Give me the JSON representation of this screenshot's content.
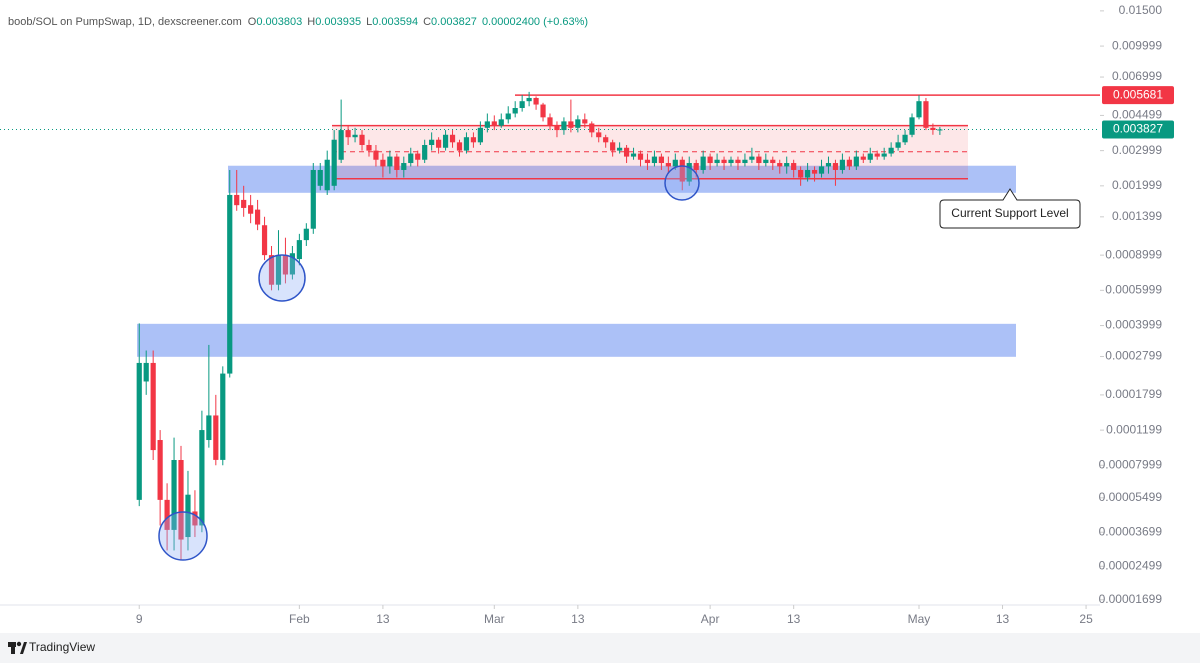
{
  "chart_data": {
    "type": "candlestick",
    "header": {
      "symbol": "boob/SOL on PumpSwap, 1D, dexscreener.com",
      "fields": [
        {
          "label": "O",
          "value": 0.003803
        },
        {
          "label": "H",
          "value": 0.003935
        },
        {
          "label": "L",
          "value": 0.003594
        },
        {
          "label": "C",
          "value": 0.003827
        }
      ],
      "change": "0.00002400 (+0.63%)"
    },
    "up_color": "#089981",
    "down_color": "#f23645",
    "log_scale": true,
    "xlim": [
      -11,
      147
    ],
    "xticks": [
      9,
      {
        "value": 32,
        "label": "Feb"
      },
      {
        "value": 44,
        "label": "13"
      },
      {
        "value": 60,
        "label": "Mar"
      },
      {
        "value": 72,
        "label": "13"
      },
      {
        "value": 91,
        "label": "Apr"
      },
      {
        "value": 103,
        "label": "13"
      },
      {
        "value": 121,
        "label": "May"
      },
      {
        "value": 133,
        "label": "13"
      },
      {
        "value": 145,
        "label": "25"
      }
    ],
    "ylim": [
      1.6e-05,
      0.017
    ],
    "yticks": [
      {
        "value": 0.015,
        "label": "0.01500"
      },
      0.009999,
      0.006999,
      0.004499,
      0.002999,
      0.001999,
      0.001399,
      0.0008999,
      0.0005999,
      0.0003999,
      0.0002799,
      0.0001799,
      0.0001199,
      7.999e-05,
      5.499e-05,
      3.699e-05,
      2.499e-05,
      1.699e-05
    ],
    "x": [
      9,
      10,
      11,
      12,
      13,
      14,
      15,
      16,
      17,
      18,
      19,
      20,
      21,
      22,
      23,
      24,
      25,
      26,
      27,
      28,
      29,
      30,
      31,
      32,
      33,
      34,
      35,
      36,
      37,
      38,
      39,
      40,
      41,
      42,
      43,
      44,
      45,
      46,
      47,
      48,
      49,
      50,
      51,
      52,
      53,
      54,
      55,
      56,
      57,
      58,
      59,
      60,
      61,
      62,
      63,
      64,
      65,
      66,
      67,
      68,
      69,
      70,
      71,
      72,
      73,
      74,
      75,
      76,
      77,
      78,
      79,
      80,
      81,
      82,
      83,
      84,
      85,
      86,
      87,
      88,
      89,
      90,
      91,
      92,
      93,
      94,
      95,
      96,
      97,
      98,
      99,
      100,
      101,
      102,
      103,
      104,
      105,
      106,
      107,
      108,
      109,
      110,
      111,
      112,
      113,
      114,
      115,
      116,
      117,
      118,
      119,
      120,
      121,
      122,
      123,
      124
    ],
    "open": [
      5.37e-05,
      0.00021,
      0.00026,
      0.000107,
      5.37e-05,
      3.8e-05,
      8.5e-05,
      3.5e-05,
      4.7e-05,
      4e-05,
      0.000107,
      0.000142,
      8.51e-05,
      0.00023,
      0.0018,
      0.0017,
      0.0016,
      0.00152,
      0.00127,
      0.0009,
      0.00064,
      0.0009,
      0.00072,
      0.00086,
      0.00107,
      0.00122,
      0.002,
      0.0019,
      0.002,
      0.0027,
      0.0038,
      0.0035,
      0.0036,
      0.0032,
      0.003,
      0.0027,
      0.0025,
      0.0028,
      0.0024,
      0.0026,
      0.0029,
      0.0027,
      0.0032,
      0.0034,
      0.0031,
      0.0036,
      0.0033,
      0.003,
      0.0035,
      0.0033,
      0.0039,
      0.0042,
      0.004,
      0.0043,
      0.0046,
      0.0049,
      0.0053,
      0.0055,
      0.0051,
      0.0044,
      0.004,
      0.0038,
      0.0042,
      0.0039,
      0.0043,
      0.0041,
      0.0037,
      0.0035,
      0.0033,
      0.003,
      0.0031,
      0.0028,
      0.0029,
      0.0027,
      0.0026,
      0.0028,
      0.0026,
      0.0025,
      0.0027,
      0.0021,
      0.0026,
      0.0024,
      0.0028,
      0.0026,
      0.0027,
      0.0026,
      0.0027,
      0.0026,
      0.0027,
      0.0028,
      0.0026,
      0.0027,
      0.0026,
      0.0025,
      0.0026,
      0.0024,
      0.0022,
      0.0024,
      0.0023,
      0.0025,
      0.0026,
      0.0024,
      0.0027,
      0.0025,
      0.0028,
      0.0027,
      0.0029,
      0.0028,
      0.0029,
      0.0031,
      0.0033,
      0.0036,
      0.0044,
      0.0053,
      0.0039,
      0.003803
    ],
    "high": [
      0.00041,
      0.0003,
      0.0003,
      0.00012,
      6.5e-05,
      0.00011,
      0.0001,
      7.5e-05,
      6e-05,
      0.00015,
      0.00032,
      0.00018,
      0.00025,
      0.0024,
      0.0024,
      0.002,
      0.0018,
      0.0017,
      0.0014,
      0.001,
      0.0012,
      0.0011,
      0.001,
      0.00115,
      0.0013,
      0.0026,
      0.0026,
      0.003,
      0.0038,
      0.0054,
      0.004,
      0.0039,
      0.0038,
      0.0034,
      0.0032,
      0.0029,
      0.003,
      0.0029,
      0.0028,
      0.0031,
      0.003,
      0.0034,
      0.0037,
      0.0035,
      0.0038,
      0.0038,
      0.0034,
      0.0037,
      0.0037,
      0.0042,
      0.0046,
      0.0045,
      0.0046,
      0.005,
      0.0053,
      0.0057,
      0.0059,
      0.0056,
      0.0052,
      0.0046,
      0.0042,
      0.0044,
      0.0054,
      0.0045,
      0.0046,
      0.0042,
      0.0039,
      0.0036,
      0.0034,
      0.0033,
      0.0032,
      0.0031,
      0.003,
      0.0029,
      0.003,
      0.0029,
      0.0028,
      0.0029,
      0.0028,
      0.0028,
      0.0027,
      0.003,
      0.0029,
      0.0029,
      0.0028,
      0.0028,
      0.0028,
      0.0029,
      0.0031,
      0.0029,
      0.0029,
      0.0028,
      0.0027,
      0.0028,
      0.0027,
      0.0025,
      0.0026,
      0.0025,
      0.0027,
      0.0028,
      0.0027,
      0.0029,
      0.0028,
      0.003,
      0.0029,
      0.0031,
      0.003,
      0.0031,
      0.0033,
      0.0036,
      0.0038,
      0.0046,
      0.005681,
      0.0055,
      0.0041,
      0.003935
    ],
    "low": [
      5e-05,
      0.00018,
      8.5e-05,
      4e-05,
      3e-05,
      3e-05,
      2.7e-05,
      3e-05,
      3.5e-05,
      3.7e-05,
      9.8e-05,
      8e-05,
      8e-05,
      0.00022,
      0.0015,
      0.0014,
      0.0013,
      0.0012,
      0.00085,
      0.0006,
      0.0006,
      0.00065,
      0.00068,
      0.0008,
      0.001,
      0.00115,
      0.0019,
      0.0018,
      0.0019,
      0.0026,
      0.0032,
      0.0033,
      0.003,
      0.0028,
      0.0025,
      0.0022,
      0.0023,
      0.0022,
      0.0022,
      0.0025,
      0.0025,
      0.0026,
      0.003,
      0.0029,
      0.003,
      0.0031,
      0.0028,
      0.0029,
      0.0031,
      0.0032,
      0.0037,
      0.0038,
      0.0039,
      0.0041,
      0.0044,
      0.0047,
      0.005,
      0.0048,
      0.0042,
      0.0038,
      0.0035,
      0.0036,
      0.0037,
      0.0037,
      0.0039,
      0.0035,
      0.0033,
      0.0031,
      0.0028,
      0.0029,
      0.0026,
      0.0027,
      0.0025,
      0.0024,
      0.0025,
      0.0024,
      0.0023,
      0.0024,
      0.0019,
      0.002,
      0.0022,
      0.0023,
      0.0024,
      0.0025,
      0.0024,
      0.0025,
      0.0024,
      0.0025,
      0.0026,
      0.0024,
      0.0025,
      0.0024,
      0.0023,
      0.0023,
      0.0022,
      0.002,
      0.0021,
      0.0021,
      0.0022,
      0.0023,
      0.002,
      0.0023,
      0.0024,
      0.0024,
      0.0026,
      0.0026,
      0.0027,
      0.0027,
      0.0028,
      0.003,
      0.0032,
      0.0035,
      0.0043,
      0.0038,
      0.0036,
      0.003594
    ],
    "close": [
      0.00026,
      0.00026,
      9.53e-05,
      5.37e-05,
      3.8e-05,
      8.5e-05,
      3.4e-05,
      5.7e-05,
      4e-05,
      0.00012,
      0.000142,
      8.51e-05,
      0.00023,
      0.0018,
      0.0016,
      0.00155,
      0.00145,
      0.00128,
      0.0009,
      0.00064,
      0.0009,
      0.00072,
      0.00092,
      0.00107,
      0.00122,
      0.0024,
      0.0024,
      0.0027,
      0.0034,
      0.0038,
      0.0035,
      0.0036,
      0.0032,
      0.003,
      0.0027,
      0.0025,
      0.0028,
      0.0024,
      0.0026,
      0.0029,
      0.0027,
      0.0032,
      0.0034,
      0.0031,
      0.0036,
      0.0033,
      0.003,
      0.0035,
      0.0033,
      0.0039,
      0.0042,
      0.004,
      0.0043,
      0.0046,
      0.0049,
      0.0053,
      0.0055,
      0.0051,
      0.0044,
      0.004,
      0.0038,
      0.0042,
      0.0039,
      0.0043,
      0.0041,
      0.0037,
      0.0035,
      0.0033,
      0.003,
      0.0031,
      0.0028,
      0.0029,
      0.0027,
      0.0026,
      0.0028,
      0.0026,
      0.0025,
      0.0027,
      0.0021,
      0.0026,
      0.0024,
      0.0028,
      0.0026,
      0.0027,
      0.0026,
      0.0027,
      0.0026,
      0.0027,
      0.0028,
      0.0026,
      0.0027,
      0.0026,
      0.0025,
      0.0026,
      0.0024,
      0.0022,
      0.0024,
      0.0023,
      0.0025,
      0.0026,
      0.0024,
      0.0027,
      0.0025,
      0.0028,
      0.0027,
      0.0029,
      0.0028,
      0.0029,
      0.0031,
      0.0033,
      0.0036,
      0.0044,
      0.0053,
      0.0039,
      0.003803,
      0.003827
    ],
    "price_tags": [
      {
        "value": 0.005681,
        "color": "#f23645"
      },
      {
        "value": 0.003827,
        "color": "#089981"
      }
    ],
    "levels": [
      0.004,
      0.00217
    ],
    "mid_level": 0.00296,
    "zones": [
      [
        0.00252,
        0.001845
      ],
      [
        0.000408,
        0.000279
      ]
    ],
    "annotation": "Current Support Level",
    "brand": "TradingView"
  }
}
